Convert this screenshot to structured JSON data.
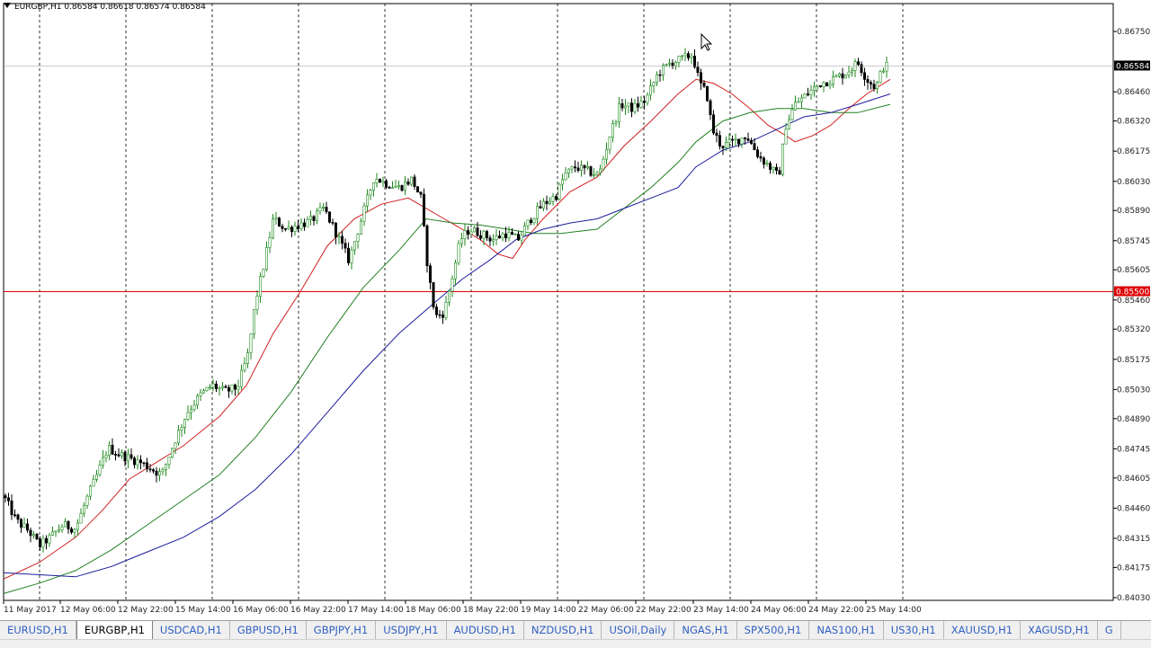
{
  "chart_header": {
    "symbol_tf": "EURGBP,H1",
    "ohlc": "0.86584 0.86618 0.86574 0.86584"
  },
  "chart_data": {
    "type": "candlestick",
    "symbol": "EURGBP",
    "timeframe": "H1",
    "ylim": [
      0.8403,
      0.8685
    ],
    "y_ticks": [
      "0.86750",
      "0.86460",
      "0.86320",
      "0.86175",
      "0.86030",
      "0.85890",
      "0.85745",
      "0.85605",
      "0.85460",
      "0.85320",
      "0.85175",
      "0.85030",
      "0.84890",
      "0.84745",
      "0.84605",
      "0.84460",
      "0.84315",
      "0.84175",
      "0.84030"
    ],
    "x_ticks": [
      "11 May 2017",
      "12 May 06:00",
      "12 May 22:00",
      "15 May 14:00",
      "16 May 06:00",
      "16 May 22:00",
      "17 May 14:00",
      "18 May 06:00",
      "18 May 22:00",
      "19 May 14:00",
      "22 May 06:00",
      "22 May 22:00",
      "23 May 14:00",
      "24 May 06:00",
      "24 May 22:00",
      "25 May 14:00"
    ],
    "bid_label": "0.86584",
    "bid_price": 0.86584,
    "level_label": "0.85500",
    "level_price": 0.855,
    "grid": "vertical dotted",
    "close_path": [
      [
        0,
        0.8452
      ],
      [
        14,
        0.844
      ],
      [
        28,
        0.8435
      ],
      [
        40,
        0.8428
      ],
      [
        52,
        0.8432
      ],
      [
        66,
        0.8438
      ],
      [
        80,
        0.8436
      ],
      [
        92,
        0.845
      ],
      [
        104,
        0.8462
      ],
      [
        116,
        0.8475
      ],
      [
        128,
        0.8472
      ],
      [
        140,
        0.847
      ],
      [
        152,
        0.8468
      ],
      [
        164,
        0.8465
      ],
      [
        176,
        0.8462
      ],
      [
        190,
        0.8478
      ],
      [
        204,
        0.8492
      ],
      [
        218,
        0.85
      ],
      [
        232,
        0.8505
      ],
      [
        246,
        0.8502
      ],
      [
        260,
        0.8504
      ],
      [
        272,
        0.852
      ],
      [
        280,
        0.8545
      ],
      [
        288,
        0.856
      ],
      [
        300,
        0.8585
      ],
      [
        314,
        0.858
      ],
      [
        328,
        0.8582
      ],
      [
        342,
        0.8584
      ],
      [
        356,
        0.859
      ],
      [
        370,
        0.8578
      ],
      [
        384,
        0.8565
      ],
      [
        398,
        0.8585
      ],
      [
        412,
        0.8605
      ],
      [
        426,
        0.8602
      ],
      [
        440,
        0.86
      ],
      [
        454,
        0.8604
      ],
      [
        464,
        0.8595
      ],
      [
        472,
        0.856
      ],
      [
        480,
        0.8538
      ],
      [
        490,
        0.854
      ],
      [
        498,
        0.8555
      ],
      [
        508,
        0.8575
      ],
      [
        518,
        0.858
      ],
      [
        530,
        0.8578
      ],
      [
        544,
        0.8575
      ],
      [
        558,
        0.8578
      ],
      [
        572,
        0.8575
      ],
      [
        586,
        0.8585
      ],
      [
        600,
        0.8592
      ],
      [
        614,
        0.8596
      ],
      [
        624,
        0.8606
      ],
      [
        636,
        0.861
      ],
      [
        648,
        0.8608
      ],
      [
        662,
        0.8606
      ],
      [
        674,
        0.8625
      ],
      [
        686,
        0.864
      ],
      [
        700,
        0.8638
      ],
      [
        714,
        0.8642
      ],
      [
        728,
        0.8655
      ],
      [
        742,
        0.866
      ],
      [
        756,
        0.8662
      ],
      [
        766,
        0.8664
      ],
      [
        774,
        0.865
      ],
      [
        782,
        0.8645
      ],
      [
        788,
        0.8628
      ],
      [
        798,
        0.862
      ],
      [
        812,
        0.8622
      ],
      [
        826,
        0.8625
      ],
      [
        840,
        0.8615
      ],
      [
        852,
        0.861
      ],
      [
        862,
        0.8605
      ],
      [
        870,
        0.863
      ],
      [
        880,
        0.864
      ],
      [
        894,
        0.8645
      ],
      [
        908,
        0.865
      ],
      [
        922,
        0.8652
      ],
      [
        936,
        0.8655
      ],
      [
        950,
        0.866
      ],
      [
        960,
        0.8652
      ],
      [
        970,
        0.8648
      ],
      [
        978,
        0.8658
      ],
      [
        986,
        0.86584
      ]
    ],
    "moving_averages": [
      {
        "color": "#d02020",
        "points": [
          [
            0,
            0.8412
          ],
          [
            40,
            0.842
          ],
          [
            80,
            0.8432
          ],
          [
            110,
            0.8445
          ],
          [
            140,
            0.846
          ],
          [
            170,
            0.8468
          ],
          [
            200,
            0.8476
          ],
          [
            240,
            0.849
          ],
          [
            270,
            0.8505
          ],
          [
            300,
            0.853
          ],
          [
            330,
            0.855
          ],
          [
            360,
            0.8572
          ],
          [
            390,
            0.8585
          ],
          [
            420,
            0.8592
          ],
          [
            450,
            0.8595
          ],
          [
            470,
            0.859
          ],
          [
            490,
            0.8585
          ],
          [
            510,
            0.858
          ],
          [
            530,
            0.8575
          ],
          [
            550,
            0.8568
          ],
          [
            566,
            0.8566
          ],
          [
            580,
            0.8575
          ],
          [
            600,
            0.8585
          ],
          [
            630,
            0.8598
          ],
          [
            660,
            0.8605
          ],
          [
            690,
            0.862
          ],
          [
            720,
            0.8632
          ],
          [
            750,
            0.8645
          ],
          [
            770,
            0.8652
          ],
          [
            790,
            0.865
          ],
          [
            810,
            0.8645
          ],
          [
            830,
            0.8638
          ],
          [
            850,
            0.863
          ],
          [
            870,
            0.8625
          ],
          [
            880,
            0.8622
          ],
          [
            900,
            0.8625
          ],
          [
            920,
            0.863
          ],
          [
            940,
            0.8638
          ],
          [
            960,
            0.8645
          ],
          [
            986,
            0.8652
          ]
        ]
      },
      {
        "color": "#208020",
        "points": [
          [
            0,
            0.8405
          ],
          [
            40,
            0.841
          ],
          [
            80,
            0.8416
          ],
          [
            120,
            0.8426
          ],
          [
            160,
            0.8438
          ],
          [
            200,
            0.845
          ],
          [
            240,
            0.8462
          ],
          [
            280,
            0.848
          ],
          [
            320,
            0.8502
          ],
          [
            360,
            0.8528
          ],
          [
            400,
            0.8552
          ],
          [
            440,
            0.857
          ],
          [
            470,
            0.8585
          ],
          [
            500,
            0.8583
          ],
          [
            530,
            0.8582
          ],
          [
            560,
            0.858
          ],
          [
            590,
            0.8578
          ],
          [
            620,
            0.8578
          ],
          [
            660,
            0.858
          ],
          [
            690,
            0.859
          ],
          [
            720,
            0.86
          ],
          [
            750,
            0.8612
          ],
          [
            770,
            0.8622
          ],
          [
            800,
            0.8632
          ],
          [
            830,
            0.8636
          ],
          [
            860,
            0.8638
          ],
          [
            890,
            0.8638
          ],
          [
            920,
            0.8636
          ],
          [
            950,
            0.8636
          ],
          [
            986,
            0.864
          ]
        ]
      },
      {
        "color": "#1c1c9c",
        "points": [
          [
            0,
            0.8415
          ],
          [
            40,
            0.8414
          ],
          [
            80,
            0.8413
          ],
          [
            120,
            0.8418
          ],
          [
            160,
            0.8425
          ],
          [
            200,
            0.8432
          ],
          [
            240,
            0.8442
          ],
          [
            280,
            0.8455
          ],
          [
            320,
            0.8472
          ],
          [
            360,
            0.8492
          ],
          [
            400,
            0.8512
          ],
          [
            440,
            0.853
          ],
          [
            480,
            0.8545
          ],
          [
            510,
            0.8556
          ],
          [
            540,
            0.8565
          ],
          [
            570,
            0.8575
          ],
          [
            600,
            0.858
          ],
          [
            630,
            0.8583
          ],
          [
            660,
            0.8585
          ],
          [
            690,
            0.859
          ],
          [
            720,
            0.8595
          ],
          [
            750,
            0.86
          ],
          [
            770,
            0.861
          ],
          [
            800,
            0.8618
          ],
          [
            830,
            0.8622
          ],
          [
            860,
            0.8628
          ],
          [
            890,
            0.8634
          ],
          [
            920,
            0.8636
          ],
          [
            950,
            0.864
          ],
          [
            986,
            0.8645
          ]
        ]
      }
    ]
  },
  "tabs": [
    {
      "label": "EURUSD,H1",
      "active": false
    },
    {
      "label": "EURGBP,H1",
      "active": true
    },
    {
      "label": "USDCAD,H1",
      "active": false
    },
    {
      "label": "GBPUSD,H1",
      "active": false
    },
    {
      "label": "GBPJPY,H1",
      "active": false
    },
    {
      "label": "USDJPY,H1",
      "active": false
    },
    {
      "label": "AUDUSD,H1",
      "active": false
    },
    {
      "label": "NZDUSD,H1",
      "active": false
    },
    {
      "label": "USOil,Daily",
      "active": false
    },
    {
      "label": "NGAS,H1",
      "active": false
    },
    {
      "label": "SPX500,H1",
      "active": false
    },
    {
      "label": "NAS100,H1",
      "active": false
    },
    {
      "label": "US30,H1",
      "active": false
    },
    {
      "label": "XAUUSD,H1",
      "active": false
    },
    {
      "label": "XAGUSD,H1",
      "active": false
    },
    {
      "label": "G",
      "active": false
    }
  ],
  "colors": {
    "bull": "#1f8a1f",
    "bear": "#000000",
    "grid": "#000000",
    "level": "#dd0000",
    "bid_bg": "#000000",
    "level_bg": "#dd0000"
  }
}
